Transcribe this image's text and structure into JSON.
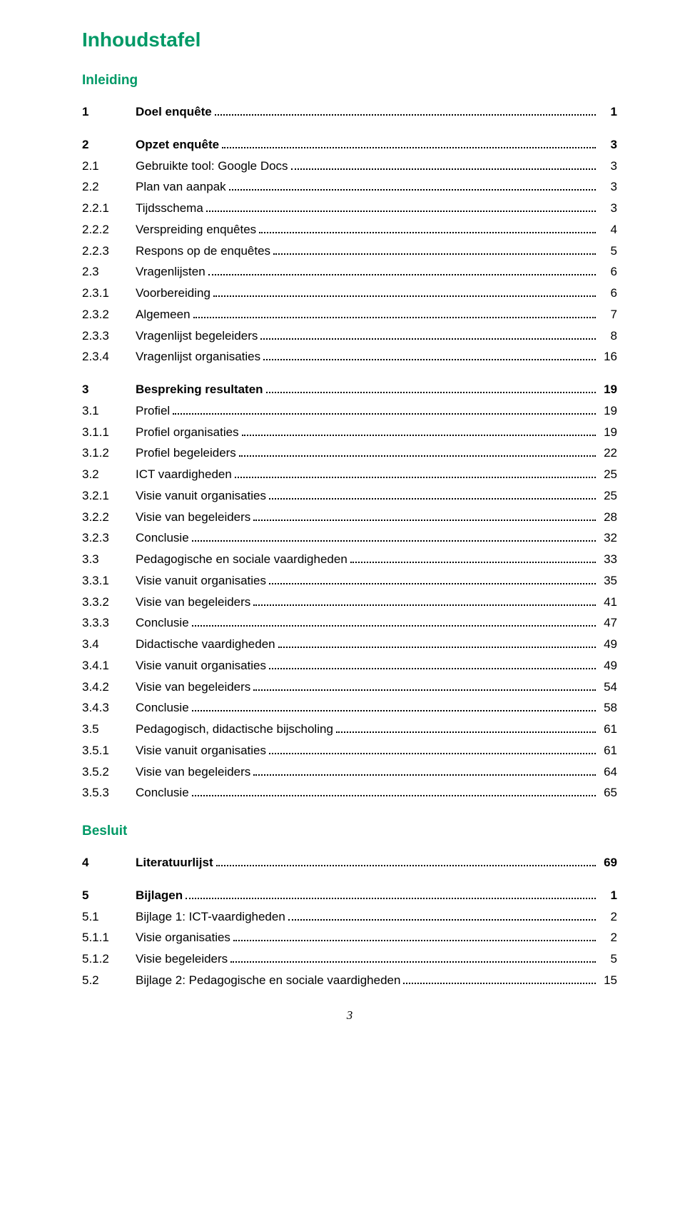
{
  "title": "Inhoudstafel",
  "headings": {
    "inleiding": "Inleiding",
    "besluit": "Besluit"
  },
  "toc": [
    {
      "num": "1",
      "label": "Doel enquête",
      "page": "1",
      "bold": true
    },
    {
      "spacer": true
    },
    {
      "num": "2",
      "label": "Opzet enquête",
      "page": "3",
      "bold": true
    },
    {
      "num": "2.1",
      "label": "Gebruikte tool: Google Docs",
      "page": "3"
    },
    {
      "num": "2.2",
      "label": "Plan van aanpak",
      "page": "3"
    },
    {
      "num": "2.2.1",
      "label": "Tijdsschema",
      "page": "3"
    },
    {
      "num": "2.2.2",
      "label": "Verspreiding enquêtes",
      "page": "4"
    },
    {
      "num": "2.2.3",
      "label": "Respons op de enquêtes",
      "page": "5"
    },
    {
      "num": "2.3",
      "label": "Vragenlijsten",
      "page": "6"
    },
    {
      "num": "2.3.1",
      "label": "Voorbereiding",
      "page": "6"
    },
    {
      "num": "2.3.2",
      "label": "Algemeen",
      "page": "7"
    },
    {
      "num": "2.3.3",
      "label": "Vragenlijst begeleiders",
      "page": "8"
    },
    {
      "num": "2.3.4",
      "label": "Vragenlijst organisaties",
      "page": "16"
    },
    {
      "spacer": true
    },
    {
      "num": "3",
      "label": "Bespreking resultaten",
      "page": "19",
      "bold": true
    },
    {
      "num": "3.1",
      "label": "Profiel",
      "page": "19"
    },
    {
      "num": "3.1.1",
      "label": "Profiel organisaties",
      "page": "19"
    },
    {
      "num": "3.1.2",
      "label": "Profiel begeleiders",
      "page": "22"
    },
    {
      "num": "3.2",
      "label": "ICT vaardigheden",
      "page": "25"
    },
    {
      "num": "3.2.1",
      "label": "Visie vanuit organisaties",
      "page": "25"
    },
    {
      "num": "3.2.2",
      "label": "Visie van begeleiders",
      "page": "28"
    },
    {
      "num": "3.2.3",
      "label": "Conclusie",
      "page": "32"
    },
    {
      "num": "3.3",
      "label": "Pedagogische en sociale vaardigheden",
      "page": "33"
    },
    {
      "num": "3.3.1",
      "label": "Visie vanuit organisaties",
      "page": "35"
    },
    {
      "num": "3.3.2",
      "label": "Visie van begeleiders",
      "page": "41"
    },
    {
      "num": "3.3.3",
      "label": "Conclusie",
      "page": "47"
    },
    {
      "num": "3.4",
      "label": "Didactische vaardigheden",
      "page": "49"
    },
    {
      "num": "3.4.1",
      "label": "Visie vanuit organisaties",
      "page": "49"
    },
    {
      "num": "3.4.2",
      "label": "Visie van begeleiders",
      "page": "54"
    },
    {
      "num": "3.4.3",
      "label": "Conclusie",
      "page": "58"
    },
    {
      "num": "3.5",
      "label": "Pedagogisch, didactische bijscholing",
      "page": "61"
    },
    {
      "num": "3.5.1",
      "label": "Visie vanuit organisaties",
      "page": "61"
    },
    {
      "num": "3.5.2",
      "label": "Visie van begeleiders",
      "page": "64"
    },
    {
      "num": "3.5.3",
      "label": "Conclusie",
      "page": "65"
    }
  ],
  "toc2": [
    {
      "num": "4",
      "label": "Literatuurlijst",
      "page": "69",
      "bold": true
    },
    {
      "spacer": true
    },
    {
      "num": "5",
      "label": "Bijlagen",
      "page": "1",
      "bold": true
    },
    {
      "num": "5.1",
      "label": "Bijlage 1: ICT-vaardigheden",
      "page": "2"
    },
    {
      "num": "5.1.1",
      "label": "Visie organisaties",
      "page": "2"
    },
    {
      "num": "5.1.2",
      "label": "Visie begeleiders",
      "page": "5"
    },
    {
      "num": "5.2",
      "label": "Bijlage 2:   Pedagogische en sociale vaardigheden",
      "page": "15"
    }
  ],
  "pageNumber": "3",
  "colors": {
    "accent": "#009966",
    "text": "#000000",
    "background": "#ffffff"
  }
}
